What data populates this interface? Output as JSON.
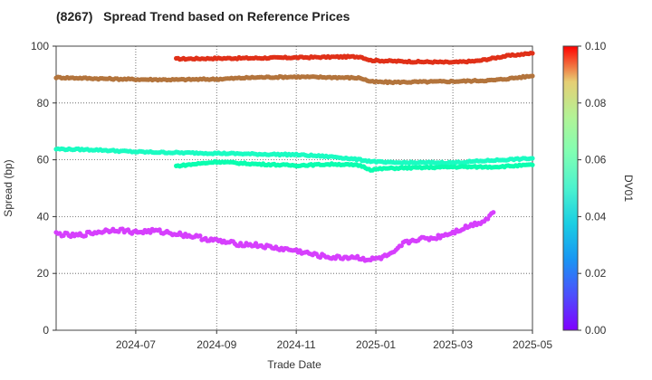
{
  "chart_data": {
    "type": "scatter",
    "title": "(8267)   Spread Trend based on Reference Prices",
    "xlabel": "Trade Date",
    "ylabel": "Spread (bp)",
    "colorbar_label": "DV01",
    "xlim": [
      "2024-05-01",
      "2025-05-01"
    ],
    "ylim": [
      0,
      100
    ],
    "clim": [
      0,
      0.1
    ],
    "x_ticks": [
      "2024-07",
      "2024-09",
      "2024-11",
      "2025-01",
      "2025-03",
      "2025-05"
    ],
    "y_ticks": [
      0,
      20,
      40,
      60,
      80,
      100
    ],
    "colorbar_ticks": [
      "0.00",
      "0.02",
      "0.04",
      "0.06",
      "0.08",
      "0.10"
    ],
    "grid": true,
    "colormap": "rainbow",
    "series": [
      {
        "dv01": 0.094,
        "points": [
          [
            "2024-08-01",
            95.5
          ],
          [
            "2024-09-01",
            95.7
          ],
          [
            "2024-10-01",
            95.8
          ],
          [
            "2024-11-01",
            96.0
          ],
          [
            "2024-12-01",
            96.2
          ],
          [
            "2024-12-20",
            96.3
          ],
          [
            "2024-12-28",
            95.0
          ],
          [
            "2025-01-10",
            94.8
          ],
          [
            "2025-02-01",
            94.5
          ],
          [
            "2025-03-01",
            94.3
          ],
          [
            "2025-03-20",
            94.8
          ],
          [
            "2025-04-10",
            96.5
          ],
          [
            "2025-05-01",
            97.5
          ]
        ]
      },
      {
        "dv01": 0.085,
        "points": [
          [
            "2024-05-01",
            89.0
          ],
          [
            "2024-06-01",
            88.6
          ],
          [
            "2024-07-01",
            88.3
          ],
          [
            "2024-08-01",
            88.2
          ],
          [
            "2024-09-01",
            88.4
          ],
          [
            "2024-10-01",
            89.0
          ],
          [
            "2024-11-01",
            89.2
          ],
          [
            "2024-12-01",
            89.0
          ],
          [
            "2024-12-20",
            88.8
          ],
          [
            "2024-12-28",
            87.5
          ],
          [
            "2025-01-10",
            87.3
          ],
          [
            "2025-02-01",
            87.4
          ],
          [
            "2025-03-01",
            87.6
          ],
          [
            "2025-04-01",
            88.0
          ],
          [
            "2025-05-01",
            89.5
          ]
        ]
      },
      {
        "dv01": 0.045,
        "points": [
          [
            "2024-05-01",
            63.8
          ],
          [
            "2024-06-01",
            63.5
          ],
          [
            "2024-07-01",
            62.8
          ],
          [
            "2024-08-01",
            62.5
          ],
          [
            "2024-09-01",
            62.3
          ],
          [
            "2024-10-01",
            62.0
          ],
          [
            "2024-11-01",
            61.8
          ],
          [
            "2024-12-01",
            61.0
          ],
          [
            "2024-12-20",
            60.0
          ],
          [
            "2024-12-28",
            59.5
          ],
          [
            "2025-01-10",
            59.0
          ],
          [
            "2025-02-01",
            59.0
          ],
          [
            "2025-03-01",
            59.0
          ],
          [
            "2025-04-01",
            59.8
          ],
          [
            "2025-05-01",
            60.5
          ]
        ]
      },
      {
        "dv01": 0.052,
        "points": [
          [
            "2024-08-01",
            57.8
          ],
          [
            "2024-09-01",
            59.3
          ],
          [
            "2024-10-01",
            58.5
          ],
          [
            "2024-11-01",
            58.0
          ],
          [
            "2024-12-01",
            58.5
          ],
          [
            "2024-12-20",
            58.0
          ],
          [
            "2024-12-28",
            56.5
          ],
          [
            "2025-01-10",
            57.0
          ],
          [
            "2025-02-01",
            57.2
          ],
          [
            "2025-03-01",
            57.5
          ],
          [
            "2025-04-01",
            57.5
          ],
          [
            "2025-05-01",
            58.2
          ]
        ]
      },
      {
        "dv01": 0.008,
        "points": [
          [
            "2024-05-01",
            34.0
          ],
          [
            "2024-05-15",
            33.2
          ],
          [
            "2024-06-01",
            34.5
          ],
          [
            "2024-06-15",
            35.5
          ],
          [
            "2024-07-01",
            34.5
          ],
          [
            "2024-07-15",
            35.0
          ],
          [
            "2024-08-01",
            34.0
          ],
          [
            "2024-08-15",
            33.0
          ],
          [
            "2024-09-01",
            31.5
          ],
          [
            "2024-09-15",
            30.5
          ],
          [
            "2024-10-01",
            30.0
          ],
          [
            "2024-10-15",
            29.0
          ],
          [
            "2024-11-01",
            28.0
          ],
          [
            "2024-11-15",
            26.5
          ],
          [
            "2024-12-01",
            25.5
          ],
          [
            "2024-12-15",
            25.8
          ],
          [
            "2024-12-28",
            24.8
          ],
          [
            "2025-01-05",
            25.5
          ],
          [
            "2025-01-15",
            27.0
          ],
          [
            "2025-01-22",
            30.5
          ],
          [
            "2025-02-01",
            32.0
          ],
          [
            "2025-02-15",
            32.5
          ],
          [
            "2025-03-01",
            34.5
          ],
          [
            "2025-03-15",
            37.0
          ],
          [
            "2025-03-25",
            38.5
          ],
          [
            "2025-04-01",
            41.5
          ]
        ]
      }
    ]
  }
}
